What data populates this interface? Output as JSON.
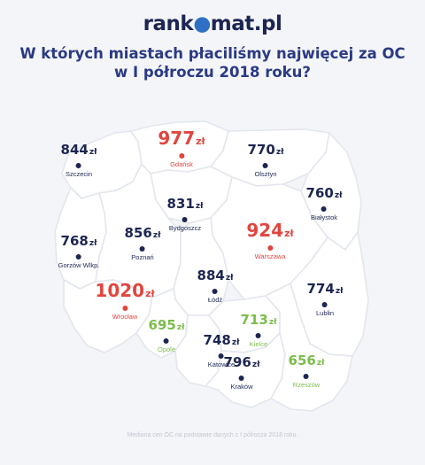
{
  "logo": {
    "left": "rank",
    "o": "●",
    "right": "mat.pl"
  },
  "title": {
    "line1": "W których miastach płaciliśmy najwięcej za OC",
    "line2": "w I półroczu 2018 roku?"
  },
  "currency": "zł",
  "cities": [
    {
      "id": "gdansk",
      "name": "Gdańsk",
      "price": "977",
      "level": "high"
    },
    {
      "id": "szczecin",
      "name": "Szczecin",
      "price": "844",
      "level": "normal"
    },
    {
      "id": "olsztyn",
      "name": "Olsztyn",
      "price": "770",
      "level": "normal"
    },
    {
      "id": "bialystok",
      "name": "Białystok",
      "price": "760",
      "level": "normal"
    },
    {
      "id": "bydgoszcz",
      "name": "Bydgoszcz",
      "price": "831",
      "level": "normal"
    },
    {
      "id": "poznan",
      "name": "Poznań",
      "price": "856",
      "level": "normal"
    },
    {
      "id": "gorzow",
      "name": "Gorzów Wlkp.",
      "price": "768",
      "level": "normal"
    },
    {
      "id": "warszawa",
      "name": "Warszawa",
      "price": "924",
      "level": "high"
    },
    {
      "id": "lodz",
      "name": "Łódź",
      "price": "884",
      "level": "normal"
    },
    {
      "id": "wroclaw",
      "name": "Wrocław",
      "price": "1020",
      "level": "high"
    },
    {
      "id": "lublin",
      "name": "Lublin",
      "price": "774",
      "level": "normal"
    },
    {
      "id": "opole",
      "name": "Opole",
      "price": "695",
      "level": "low"
    },
    {
      "id": "kielce",
      "name": "Kielce",
      "price": "713",
      "level": "low"
    },
    {
      "id": "katowice",
      "name": "Katowice",
      "price": "748",
      "level": "normal"
    },
    {
      "id": "krakow",
      "name": "Kraków",
      "price": "796",
      "level": "normal"
    },
    {
      "id": "rzeszow",
      "name": "Rzeszów",
      "price": "656",
      "level": "low"
    }
  ],
  "colors": {
    "high": "#e0463f",
    "low": "#7bbd4b",
    "normal": "#1d2552",
    "map_fill": "#ffffff",
    "map_border": "#e3e6ee"
  },
  "footnote": "Mediana cen OC na podstawie danych z I półrocza 2018 roku."
}
